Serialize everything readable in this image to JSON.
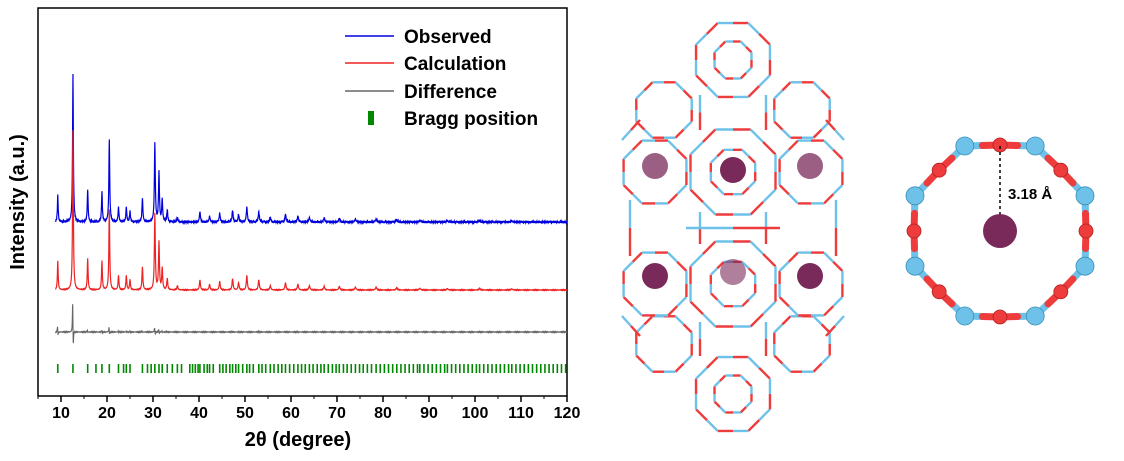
{
  "chart_data": {
    "type": "line",
    "title": "",
    "xlabel": "2θ (degree)",
    "ylabel": "Intensity (a.u.)",
    "xlim": [
      5,
      120
    ],
    "xticks": [
      10,
      20,
      30,
      40,
      50,
      60,
      70,
      80,
      90,
      100,
      110,
      120
    ],
    "yticks_visible": false,
    "grid": false,
    "legend_position": "top-right",
    "colors": {
      "observed": "#0000dd",
      "calculation": "#ee2222",
      "difference": "#666666",
      "bragg": "#008800"
    },
    "series": [
      {
        "name": "Observed",
        "key": "observed",
        "style": "line"
      },
      {
        "name": "Calculation",
        "key": "calculation",
        "style": "line"
      },
      {
        "name": "Difference",
        "key": "difference",
        "style": "line"
      },
      {
        "name": "Bragg position",
        "key": "bragg",
        "style": "ticks"
      }
    ],
    "peaks": [
      {
        "x": 9.3,
        "intensity": 0.18
      },
      {
        "x": 12.6,
        "intensity": 1.0
      },
      {
        "x": 15.8,
        "intensity": 0.22
      },
      {
        "x": 18.9,
        "intensity": 0.2
      },
      {
        "x": 20.5,
        "intensity": 0.56
      },
      {
        "x": 22.5,
        "intensity": 0.1
      },
      {
        "x": 24.2,
        "intensity": 0.1
      },
      {
        "x": 25.0,
        "intensity": 0.07
      },
      {
        "x": 27.7,
        "intensity": 0.16
      },
      {
        "x": 30.4,
        "intensity": 0.53
      },
      {
        "x": 31.3,
        "intensity": 0.33
      },
      {
        "x": 32.0,
        "intensity": 0.15
      },
      {
        "x": 33.1,
        "intensity": 0.08
      },
      {
        "x": 35.3,
        "intensity": 0.03
      },
      {
        "x": 40.2,
        "intensity": 0.07
      },
      {
        "x": 42.3,
        "intensity": 0.04
      },
      {
        "x": 44.5,
        "intensity": 0.06
      },
      {
        "x": 47.3,
        "intensity": 0.08
      },
      {
        "x": 48.6,
        "intensity": 0.05
      },
      {
        "x": 50.4,
        "intensity": 0.1
      },
      {
        "x": 53.0,
        "intensity": 0.07
      },
      {
        "x": 55.5,
        "intensity": 0.03
      },
      {
        "x": 58.8,
        "intensity": 0.05
      },
      {
        "x": 61.5,
        "intensity": 0.04
      },
      {
        "x": 64.0,
        "intensity": 0.03
      },
      {
        "x": 67.2,
        "intensity": 0.025
      },
      {
        "x": 70.5,
        "intensity": 0.025
      },
      {
        "x": 74.0,
        "intensity": 0.02
      },
      {
        "x": 78.5,
        "intensity": 0.02
      },
      {
        "x": 83.0,
        "intensity": 0.015
      },
      {
        "x": 88.0,
        "intensity": 0.012
      },
      {
        "x": 94.0,
        "intensity": 0.01
      },
      {
        "x": 101.0,
        "intensity": 0.01
      },
      {
        "x": 108.0,
        "intensity": 0.008
      }
    ],
    "bragg_positions": [
      9.3,
      12.6,
      15.8,
      17.6,
      18.9,
      20.5,
      22.5,
      23.6,
      24.2,
      25.0,
      27.7,
      28.8,
      29.6,
      30.4,
      31.3,
      32.0,
      33.1,
      34.2,
      35.3,
      36.2,
      38.0,
      38.6,
      39.2,
      39.8,
      40.2,
      41.1,
      41.8,
      42.3,
      43.1,
      44.5,
      45.2,
      45.9,
      46.7,
      47.3,
      48.0,
      48.6,
      49.5,
      50.4,
      51.0,
      51.8,
      53.0,
      53.7,
      54.5,
      55.5,
      56.3,
      57.2,
      58.0,
      58.8,
      59.7,
      60.6,
      61.5,
      62.3,
      63.1,
      64.0,
      64.8,
      65.7,
      66.5,
      67.2,
      68.1,
      69.0,
      69.8,
      70.5,
      71.4,
      72.2,
      73.1,
      74.0,
      74.9,
      75.7,
      76.6,
      77.5,
      78.5,
      79.4,
      80.3,
      81.2,
      82.1,
      83.0,
      83.9,
      84.8,
      85.7,
      86.6,
      87.5,
      88.0,
      88.9,
      89.8,
      90.7,
      91.6,
      92.5,
      93.4,
      94.0,
      94.9,
      95.8,
      96.7,
      97.6,
      98.5,
      99.4,
      100.3,
      101.0,
      101.9,
      102.8,
      103.7,
      104.6,
      105.5,
      106.4,
      107.3,
      108.0,
      108.9,
      109.8,
      110.7,
      111.6,
      112.5,
      113.4,
      114.3,
      115.2,
      116.1,
      117.0,
      117.9,
      118.8,
      119.7
    ]
  },
  "structure": {
    "colors": {
      "framework_t": "#6ec1e8",
      "framework_o": "#ee3b3b",
      "cation": "#7a2a5a"
    },
    "distance_label": "3.18 Å"
  }
}
